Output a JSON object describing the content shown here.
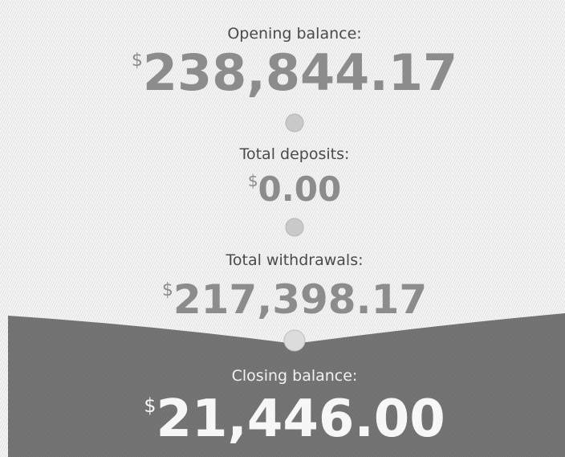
{
  "items": [
    {
      "label": "Opening balance:",
      "currency": "$",
      "amount": "238,844.17"
    },
    {
      "label": "Total deposits:",
      "currency": "$",
      "amount": "0.00"
    },
    {
      "label": "Total withdrawals:",
      "currency": "$",
      "amount": "217,398.17"
    },
    {
      "label": "Closing balance:",
      "currency": "$",
      "amount": "21,446.00"
    }
  ]
}
